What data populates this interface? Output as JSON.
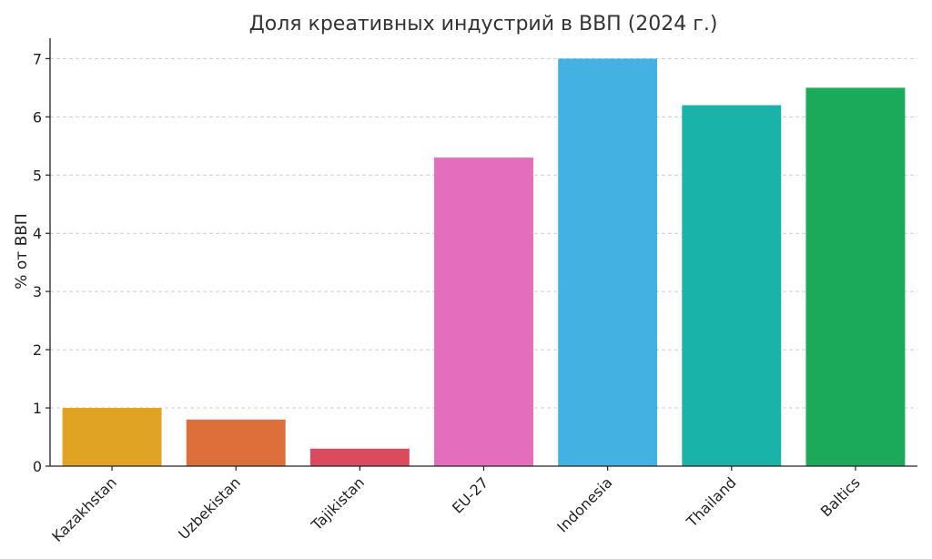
{
  "chart_data": {
    "type": "bar",
    "title": "Доля креативных индустрий в ВВП (2024 г.)",
    "xlabel": "",
    "ylabel": "% от ВВП",
    "categories": [
      "Kazakhstan",
      "Uzbekistan",
      "Tajikistan",
      "EU-27",
      "Indonesia",
      "Thailand",
      "Baltics"
    ],
    "values": [
      1.0,
      0.8,
      0.3,
      5.3,
      7.0,
      6.2,
      6.5
    ],
    "colors": [
      "#E0A323",
      "#DD703A",
      "#DB4A5E",
      "#E46DBD",
      "#43B2E3",
      "#1AB3A9",
      "#1BAA5A"
    ],
    "ylim": [
      0,
      7.35
    ],
    "yticks": [
      "0",
      "1",
      "2",
      "3",
      "4",
      "5",
      "6",
      "7"
    ],
    "grid": true,
    "legend": "none"
  }
}
